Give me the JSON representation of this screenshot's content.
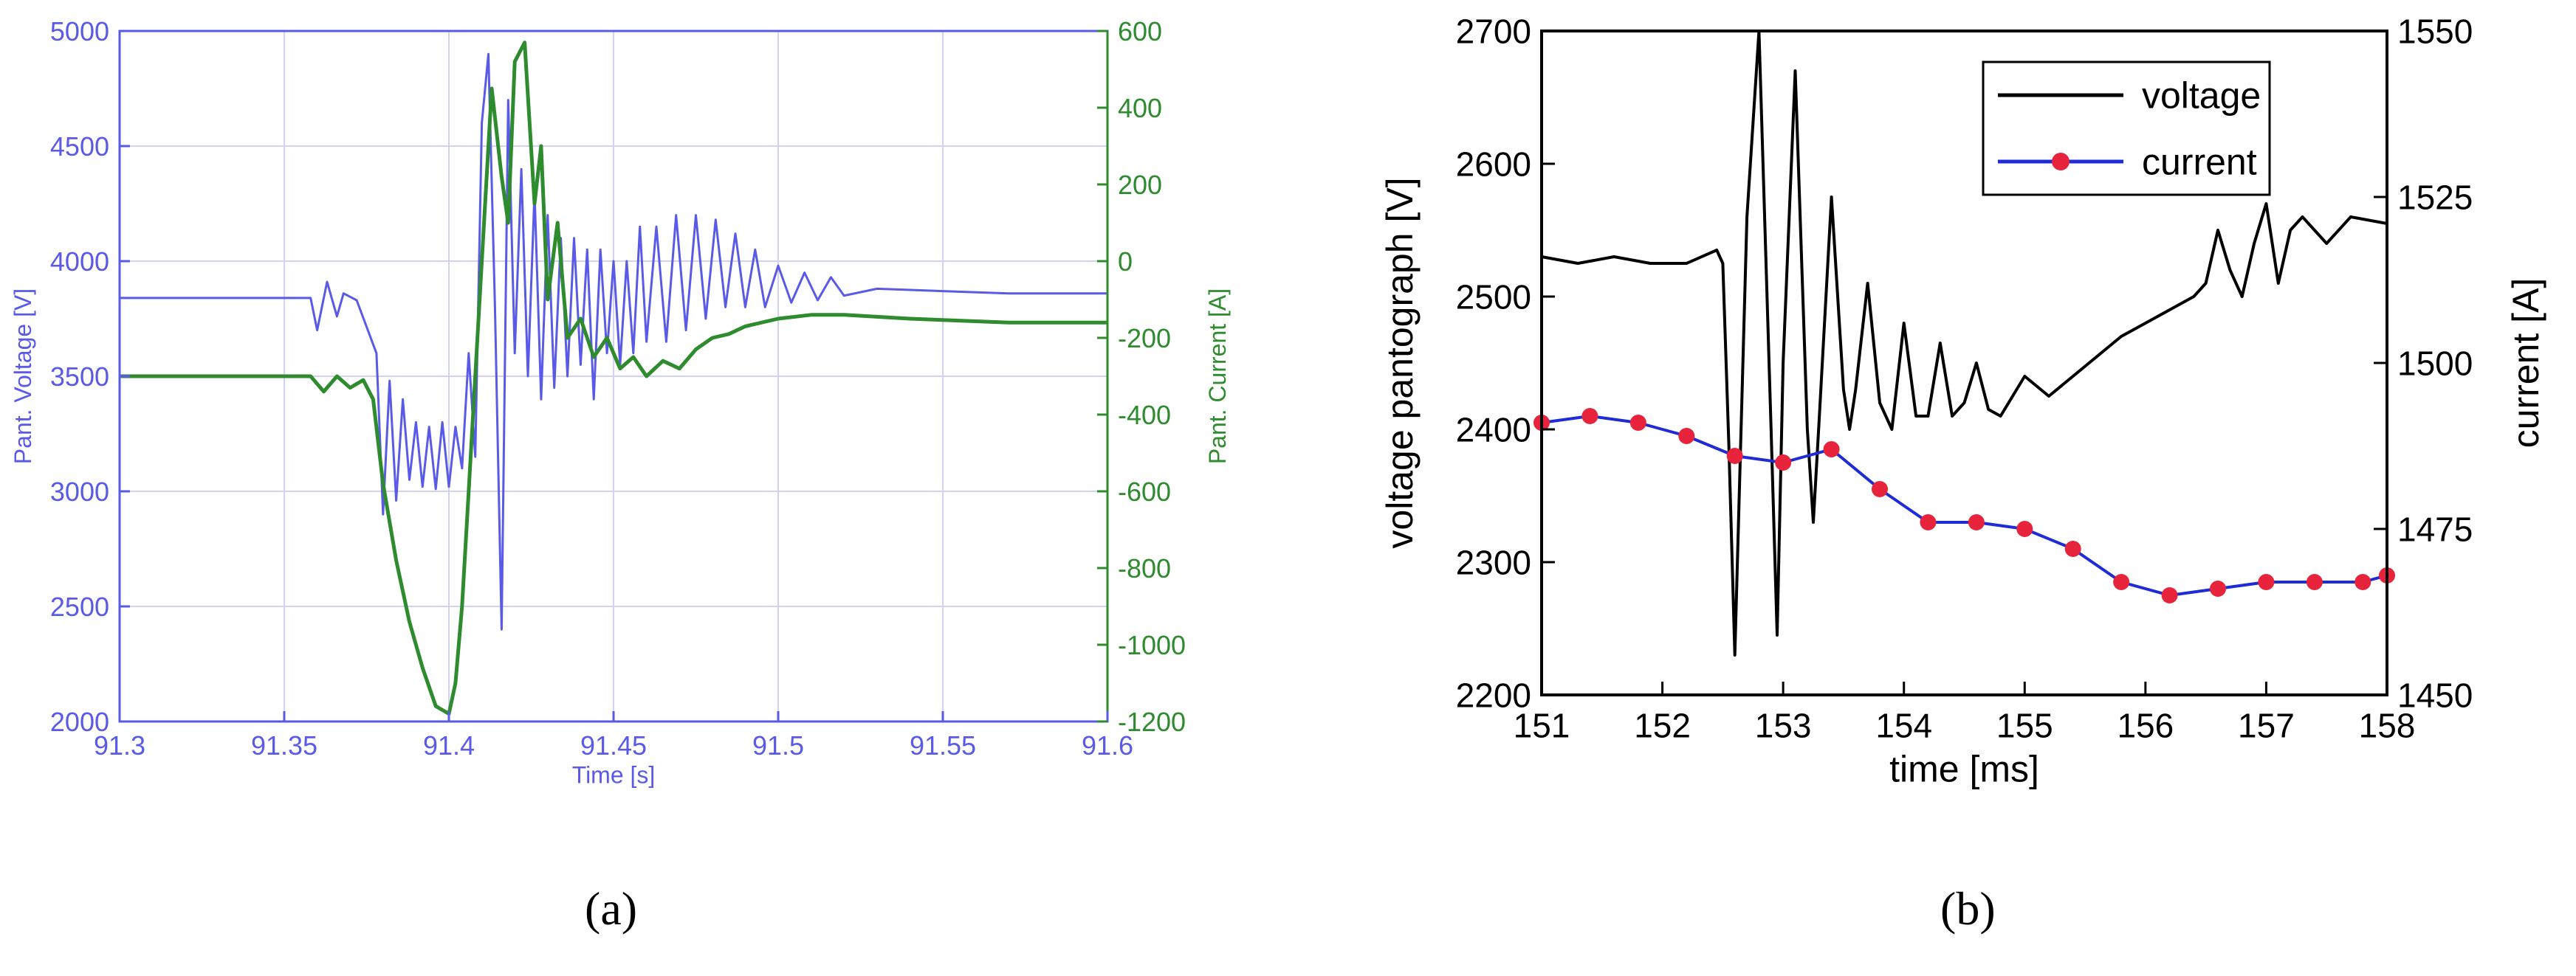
{
  "captions": {
    "a": "(a)",
    "b": "(b)"
  },
  "chart_data": [
    {
      "type": "line",
      "panel": "a",
      "xlabel": "Time [s]",
      "ylabel_left": "Pant. Voltage [V]",
      "ylabel_right": "Pant. Current [A]",
      "xlim": [
        91.3,
        91.6
      ],
      "ylim_left": [
        2000,
        5000
      ],
      "ylim_right": [
        -1200,
        600
      ],
      "xticks": [
        "91.3",
        "91.35",
        "91.4",
        "91.45",
        "91.5",
        "91.55",
        "91.6"
      ],
      "yticks_left": [
        "2000",
        "2500",
        "3000",
        "3500",
        "4000",
        "4500",
        "5000"
      ],
      "yticks_right": [
        "-1200",
        "-1000",
        "-800",
        "-600",
        "-400",
        "-200",
        "0",
        "200",
        "400",
        "600"
      ],
      "grid": true,
      "colors": {
        "voltage": "#5a5ae8",
        "current": "#2e8b2e",
        "axis_left": "#5a5ae8",
        "axis_right": "#2e8b2e"
      },
      "series": [
        {
          "axis": "left",
          "x": [
            91.3,
            91.357,
            91.358,
            91.36,
            91.363,
            91.366,
            91.368,
            91.372,
            91.378,
            91.38,
            91.382,
            91.384,
            91.386,
            91.388,
            91.39,
            91.392,
            91.394,
            91.396,
            91.398,
            91.4,
            91.402,
            91.404,
            91.406,
            91.408,
            91.41,
            91.412,
            91.414,
            91.416,
            91.418,
            91.42,
            91.422,
            91.424,
            91.426,
            91.428,
            91.43,
            91.432,
            91.434,
            91.436,
            91.438,
            91.44,
            91.442,
            91.444,
            91.446,
            91.448,
            91.45,
            91.452,
            91.454,
            91.456,
            91.458,
            91.46,
            91.463,
            91.466,
            91.469,
            91.472,
            91.475,
            91.478,
            91.481,
            91.484,
            91.487,
            91.49,
            91.493,
            91.496,
            91.5,
            91.504,
            91.508,
            91.512,
            91.516,
            91.52,
            91.53,
            91.55,
            91.57,
            91.6
          ],
          "values": [
            3840,
            3840,
            3840,
            3700,
            3910,
            3760,
            3860,
            3830,
            3600,
            2900,
            3480,
            2960,
            3400,
            3050,
            3300,
            3020,
            3280,
            3010,
            3300,
            3020,
            3280,
            3100,
            3600,
            3150,
            4600,
            4900,
            3800,
            2400,
            4700,
            3600,
            4400,
            3500,
            4300,
            3400,
            4200,
            3450,
            4100,
            3500,
            4100,
            3550,
            4050,
            3400,
            4050,
            3600,
            4000,
            3550,
            4000,
            3600,
            4150,
            3650,
            4150,
            3650,
            4200,
            3700,
            4200,
            3750,
            4180,
            3800,
            4120,
            3800,
            4050,
            3800,
            3980,
            3820,
            3950,
            3830,
            3930,
            3850,
            3880,
            3870,
            3860,
            3860
          ]
        },
        {
          "axis": "right",
          "x": [
            91.3,
            91.358,
            91.362,
            91.366,
            91.37,
            91.374,
            91.377,
            91.38,
            91.384,
            91.388,
            91.392,
            91.396,
            91.398,
            91.4,
            91.402,
            91.404,
            91.406,
            91.408,
            91.41,
            91.413,
            91.416,
            91.418,
            91.42,
            91.423,
            91.426,
            91.428,
            91.43,
            91.433,
            91.436,
            91.44,
            91.444,
            91.448,
            91.452,
            91.456,
            91.46,
            91.465,
            91.47,
            91.475,
            91.48,
            91.485,
            91.49,
            91.5,
            91.51,
            91.52,
            91.54,
            91.57,
            91.6
          ],
          "values": [
            -300,
            -300,
            -340,
            -300,
            -330,
            -310,
            -360,
            -580,
            -780,
            -940,
            -1060,
            -1160,
            -1170,
            -1180,
            -1100,
            -900,
            -600,
            -300,
            0,
            450,
            220,
            100,
            520,
            570,
            150,
            300,
            -100,
            100,
            -200,
            -150,
            -250,
            -200,
            -280,
            -250,
            -300,
            -260,
            -280,
            -230,
            -200,
            -190,
            -170,
            -150,
            -140,
            -140,
            -150,
            -160,
            -160
          ]
        }
      ]
    },
    {
      "type": "line",
      "panel": "b",
      "xlabel": "time [ms]",
      "ylabel_left": "voltage pantograph [V]",
      "ylabel_right": "current [A]",
      "xlim": [
        151,
        158
      ],
      "ylim_left": [
        2200,
        2700
      ],
      "ylim_right": [
        1450,
        1550
      ],
      "xticks": [
        "151",
        "152",
        "153",
        "154",
        "155",
        "156",
        "157",
        "158"
      ],
      "yticks_left": [
        "2200",
        "2300",
        "2400",
        "2500",
        "2600",
        "2700"
      ],
      "yticks_right": [
        "1450",
        "1475",
        "1500",
        "1525",
        "1550"
      ],
      "grid": false,
      "legend": {
        "placement": "top-right",
        "entries": [
          "voltage",
          "current"
        ]
      },
      "colors": {
        "voltage": "#000000",
        "current": "#1f2bd6",
        "marker": "#e8243c"
      },
      "series": [
        {
          "name": "voltage",
          "axis": "left",
          "x": [
            151.0,
            151.3,
            151.6,
            151.9,
            152.2,
            152.45,
            152.5,
            152.55,
            152.6,
            152.7,
            152.8,
            152.9,
            152.95,
            153.0,
            153.1,
            153.2,
            153.25,
            153.3,
            153.4,
            153.5,
            153.55,
            153.6,
            153.7,
            153.8,
            153.9,
            154.0,
            154.1,
            154.2,
            154.3,
            154.4,
            154.5,
            154.6,
            154.7,
            154.8,
            155.0,
            155.2,
            155.4,
            155.6,
            155.8,
            156.0,
            156.2,
            156.4,
            156.5,
            156.6,
            156.7,
            156.8,
            156.9,
            157.0,
            157.1,
            157.2,
            157.3,
            157.5,
            157.7,
            158.0
          ],
          "values": [
            2530,
            2525,
            2530,
            2525,
            2525,
            2535,
            2525,
            2390,
            2230,
            2560,
            2700,
            2400,
            2245,
            2450,
            2670,
            2400,
            2330,
            2410,
            2575,
            2430,
            2400,
            2430,
            2510,
            2420,
            2400,
            2480,
            2410,
            2410,
            2465,
            2410,
            2420,
            2450,
            2415,
            2410,
            2440,
            2425,
            2440,
            2455,
            2470,
            2480,
            2490,
            2500,
            2510,
            2550,
            2520,
            2500,
            2540,
            2570,
            2510,
            2550,
            2560,
            2540,
            2560,
            2555
          ]
        },
        {
          "name": "current",
          "axis": "right",
          "x": [
            151.0,
            151.4,
            151.8,
            152.2,
            152.6,
            153.0,
            153.4,
            153.8,
            154.2,
            154.6,
            155.0,
            155.4,
            155.8,
            156.2,
            156.6,
            157.0,
            157.4,
            157.8,
            158.0
          ],
          "values": [
            1491,
            1492,
            1491,
            1489,
            1486,
            1485,
            1487,
            1481,
            1476,
            1476,
            1475,
            1472,
            1467,
            1465,
            1466,
            1467,
            1467,
            1467,
            1468
          ],
          "markers": true
        }
      ]
    }
  ]
}
